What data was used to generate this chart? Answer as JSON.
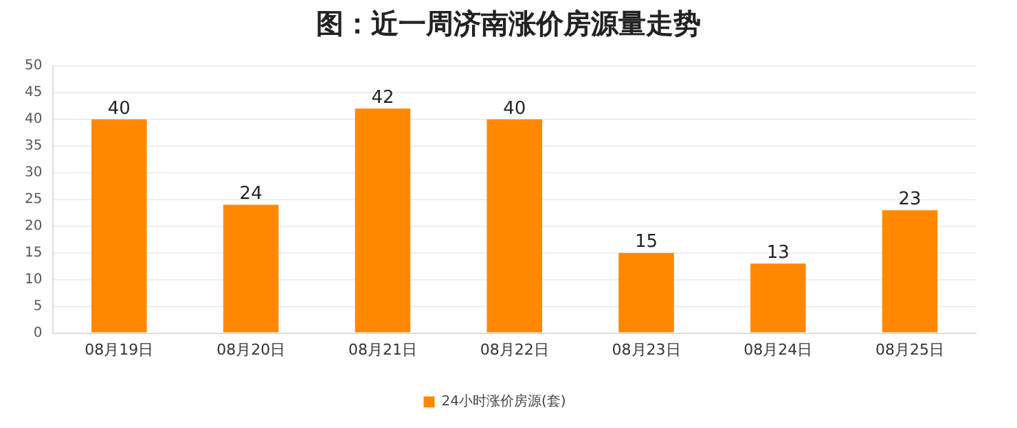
{
  "chart_data": {
    "type": "bar",
    "title": "图：近一周济南涨价房源量走势",
    "categories": [
      "08月19日",
      "08月20日",
      "08月21日",
      "08月22日",
      "08月23日",
      "08月24日",
      "08月25日"
    ],
    "series": [
      {
        "name": "24小时涨价房源(套)",
        "color": "#ff8800",
        "values": [
          40,
          24,
          42,
          40,
          15,
          13,
          23
        ]
      }
    ],
    "ylim": [
      0,
      50
    ],
    "yticks": [
      0,
      5,
      10,
      15,
      20,
      25,
      30,
      35,
      40,
      45,
      50
    ],
    "grid": "y",
    "legend": "bottom",
    "data_labels": true
  }
}
